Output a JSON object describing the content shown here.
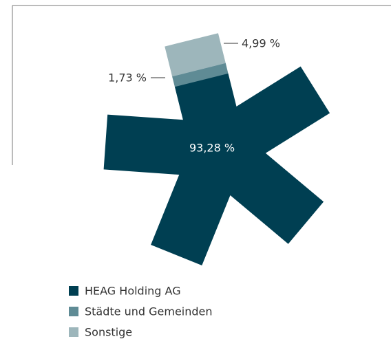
{
  "chart_data": {
    "type": "pie",
    "categories": [
      "HEAG Holding AG",
      "Städte und Gemeinden",
      "Sonstige"
    ],
    "values": [
      93.28,
      1.73,
      4.99
    ],
    "value_labels": [
      "93,28 %",
      "1,73 %",
      "4,99 %"
    ],
    "colors": [
      "#003f52",
      "#5f8b95",
      "#9db6bb"
    ],
    "legend": "bottom"
  }
}
